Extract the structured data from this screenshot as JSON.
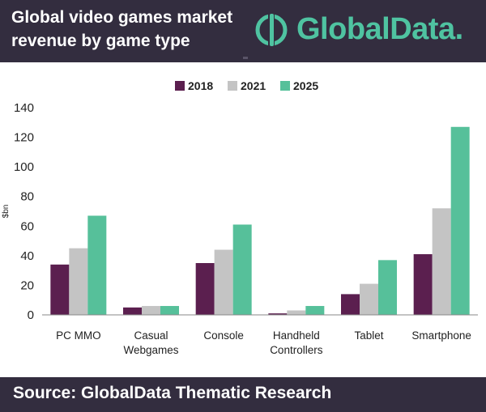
{
  "header": {
    "title_line1": "Global video games market",
    "title_line2": "revenue by game type",
    "logo_text": "GlobalData.",
    "logo_icon": "globaldata-logo-icon",
    "background_color": "#332d3f",
    "accent_color": "#4fc3a1"
  },
  "footer": {
    "source": "Source:  GlobalData Thematic Research"
  },
  "chart_data": {
    "type": "bar",
    "title": "",
    "xlabel": "",
    "ylabel": "$bn",
    "categories": [
      [
        "PC MMO"
      ],
      [
        "Casual",
        "Webgames"
      ],
      [
        "Console"
      ],
      [
        "Handheld",
        "Controllers"
      ],
      [
        "Tablet"
      ],
      [
        "Smartphone"
      ]
    ],
    "series": [
      {
        "name": "2018",
        "color": "#5b1f4f",
        "values": [
          34,
          5,
          35,
          1,
          14,
          41
        ]
      },
      {
        "name": "2021",
        "color": "#c4c4c4",
        "values": [
          45,
          6,
          44,
          3,
          21,
          72
        ]
      },
      {
        "name": "2025",
        "color": "#56c09a",
        "values": [
          67,
          6,
          61,
          6,
          37,
          127
        ]
      }
    ],
    "ylim": [
      0,
      140
    ],
    "yticks": [
      0,
      20,
      40,
      60,
      80,
      100,
      120,
      140
    ],
    "grid": false,
    "legend_position": "top-center"
  }
}
